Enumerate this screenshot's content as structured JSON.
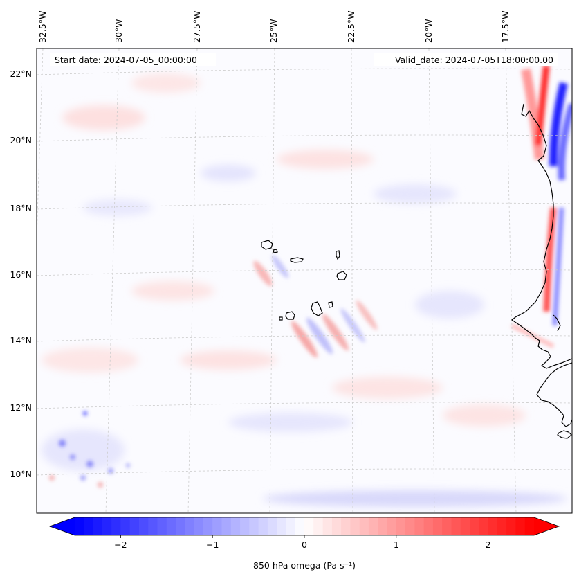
{
  "header": {
    "start_date": "Start date: 2024-07-05_00:00:00",
    "valid_date": "Valid_date: 2024-07-05T18:00:00.00"
  },
  "map": {
    "projection": "lambert-conformal",
    "lon_labels": [
      "32.5°W",
      "30°W",
      "27.5°W",
      "25°W",
      "22.5°W",
      "20°W",
      "17.5°W"
    ],
    "lat_labels": [
      "22°N",
      "20°N",
      "18°N",
      "16°N",
      "14°N",
      "12°N",
      "10°N"
    ],
    "gridlines": true
  },
  "colorbar": {
    "label": "850 hPa omega (Pa s⁻¹)",
    "ticks": [
      "−2",
      "−1",
      "0",
      "1",
      "2"
    ],
    "tick_values": [
      -2,
      -1,
      0,
      1,
      2
    ],
    "range": [
      -2.5,
      2.5
    ],
    "extend": "both",
    "colormap": "bwr",
    "color_min": "#0000ff",
    "color_mid": "#ffffff",
    "color_max": "#ff0000"
  }
}
